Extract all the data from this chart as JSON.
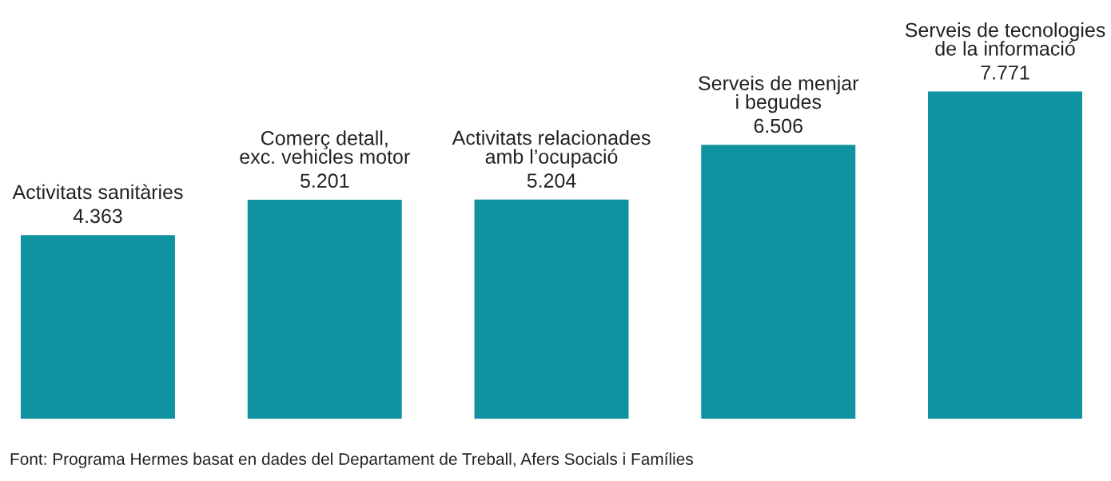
{
  "chart_data": {
    "type": "bar",
    "categories": [
      "Activitats sanitàries",
      "Comerç detall,\nexc. vehicles motor",
      "Activitats relacionades\namb l’ocupació",
      "Serveis de menjar\ni begudes",
      "Serveis de tecnologies\nde la informació"
    ],
    "values": [
      4363,
      5201,
      5204,
      6506,
      7771
    ],
    "value_labels": [
      "4.363",
      "5.201",
      "5.204",
      "6.506",
      "7.771"
    ],
    "color": "#0f93a1",
    "tick_labels": false,
    "annotations": [
      "Font: Programa Hermes basat en dades del Departament de Treball, Afers Socials i Famílies"
    ]
  }
}
